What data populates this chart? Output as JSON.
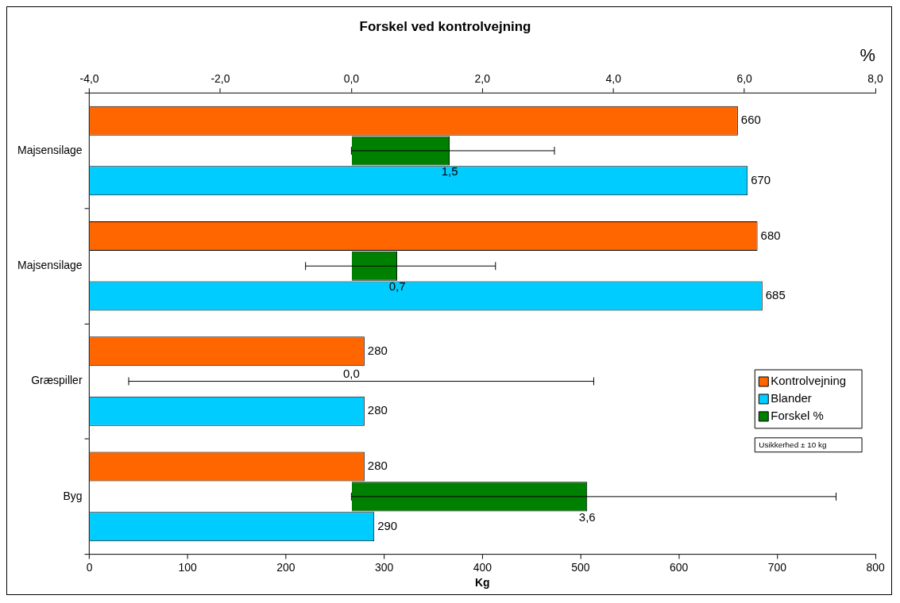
{
  "chart_data": {
    "type": "bar",
    "orientation": "horizontal",
    "title": "Forskel ved kontrolvejning",
    "xlabel": "Kg",
    "x2label": "%",
    "categories": [
      "Majsensilage",
      "Majsensilage",
      "Græspiller",
      "Byg"
    ],
    "series": [
      {
        "name": "Kontrolvejning",
        "color": "#ff6600",
        "values": [
          660,
          680,
          280,
          280
        ],
        "value_labels": [
          "660",
          "680",
          "280",
          "280"
        ]
      },
      {
        "name": "Blander",
        "color": "#00ccff",
        "values": [
          670,
          685,
          280,
          290
        ],
        "value_labels": [
          "670",
          "685",
          "280",
          "290"
        ]
      },
      {
        "name": "Forskel %",
        "color": "#008000",
        "axis": "x2",
        "values": [
          1.5,
          0.7,
          0.0,
          3.6
        ],
        "value_labels": [
          "1,5",
          "0,7",
          "0,0",
          "3,6"
        ],
        "errors": [
          [
            0.0,
            3.1
          ],
          [
            -0.7,
            2.2
          ],
          [
            -3.4,
            3.7
          ],
          [
            0.0,
            7.4
          ]
        ]
      }
    ],
    "xlim": [
      0,
      800
    ],
    "xticks": [
      0,
      100,
      200,
      300,
      400,
      500,
      600,
      700,
      800
    ],
    "x2lim": [
      -4,
      8
    ],
    "x2ticks": [
      {
        "value": -4,
        "label": "-4,0"
      },
      {
        "value": -2,
        "label": "-2,0"
      },
      {
        "value": 0,
        "label": "0,0"
      },
      {
        "value": 2,
        "label": "2,0"
      },
      {
        "value": 4,
        "label": "4,0"
      },
      {
        "value": 6,
        "label": "6,0"
      },
      {
        "value": 8,
        "label": "8,0"
      }
    ],
    "grid": false,
    "legend": "right",
    "annotations": [
      "Usikkerhed ± 10 kg"
    ]
  }
}
